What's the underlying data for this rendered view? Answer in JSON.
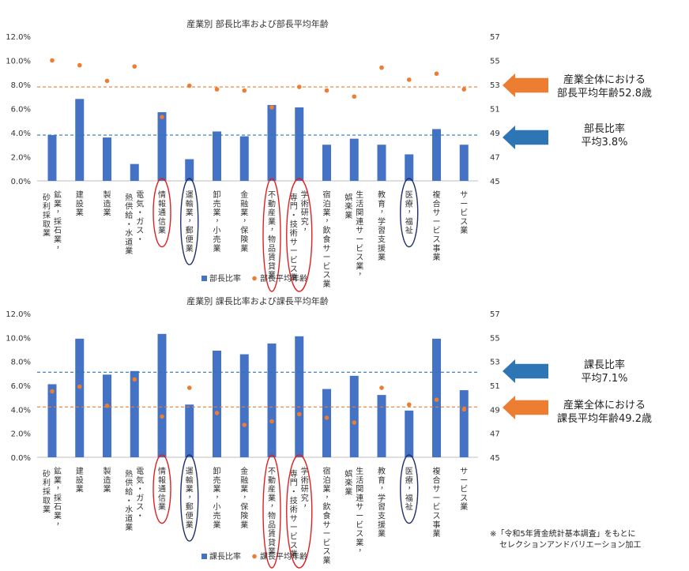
{
  "charts": [
    {
      "title": "産業別 部長比率および部長平均年齢",
      "bar_color": "#4472C4",
      "dot_color": "#ED7D31",
      "left_ticks": [
        "0.0%",
        "2.0%",
        "4.0%",
        "6.0%",
        "8.0%",
        "10.0%",
        "12.0%"
      ],
      "right_ticks": [
        "45",
        "47",
        "49",
        "51",
        "53",
        "55",
        "57"
      ],
      "legend": {
        "bar": "部長比率",
        "dot": "部長平均年齢"
      },
      "annotations": {
        "age_line1": "産業全体における",
        "age_line2": "部長平均年齢52.8歳",
        "ratio_line1": "部長比率",
        "ratio_line2": "平均3.8%"
      }
    },
    {
      "title": "産業別 課長比率および課長平均年齢",
      "bar_color": "#4472C4",
      "dot_color": "#ED7D31",
      "left_ticks": [
        "0.0%",
        "2.0%",
        "4.0%",
        "6.0%",
        "8.0%",
        "10.0%",
        "12.0%"
      ],
      "right_ticks": [
        "45",
        "47",
        "49",
        "51",
        "53",
        "55",
        "57"
      ],
      "legend": {
        "bar": "課長比率",
        "dot": "課長平均年齢"
      },
      "annotations": {
        "ratio_line1": "課長比率",
        "ratio_line2": "平均7.1%",
        "age_line1": "産業全体における",
        "age_line2": "課長平均年齢49.2歳"
      }
    }
  ],
  "footnote": {
    "line1": "※「令和5年賃金統計基本調査」をもとに",
    "line2": "セレクションアンドバリエーション加工"
  },
  "chart_data": [
    {
      "type": "bar",
      "title": "産業別 部長比率および部長平均年齢",
      "categories": [
        [
          "砂利採取業",
          "鉱業，採石業，"
        ],
        [
          "建設業"
        ],
        [
          "製造業"
        ],
        [
          "熱供給・水道業",
          "電気・ガス・"
        ],
        [
          "情報通信業"
        ],
        [
          "運輸業，郵便業"
        ],
        [
          "卸売業，小売業"
        ],
        [
          "金融業，保険業"
        ],
        [
          "不動産業，物品賃貸業"
        ],
        [
          "専門・技術サービス業",
          "学術研究，"
        ],
        [
          "宿泊業，飲食サービス業"
        ],
        [
          "娯楽業",
          "生活関連サービス業，"
        ],
        [
          "教育，学習支援業"
        ],
        [
          "医療，福祉"
        ],
        [
          "複合サービス事業"
        ],
        [
          "サービス業"
        ]
      ],
      "series": [
        {
          "name": "部長比率",
          "kind": "bar",
          "axis": "left",
          "unit": "%",
          "values": [
            3.8,
            6.8,
            3.6,
            1.4,
            5.7,
            1.8,
            4.1,
            3.7,
            6.3,
            6.1,
            3.0,
            3.5,
            3.0,
            2.2,
            4.3,
            3.0
          ]
        },
        {
          "name": "部長平均年齢",
          "kind": "scatter",
          "axis": "right",
          "values": [
            55.0,
            54.6,
            53.3,
            54.5,
            50.3,
            52.9,
            52.6,
            52.5,
            51.1,
            52.8,
            52.5,
            52.0,
            54.4,
            53.4,
            53.9,
            52.6
          ]
        }
      ],
      "ylim_left": [
        0,
        12
      ],
      "ylim_right": [
        45,
        57
      ],
      "reference_lines": [
        {
          "axis": "left",
          "value": 3.8,
          "color": "#2E75B6"
        },
        {
          "axis": "right",
          "value": 52.8,
          "color": "#ED7D31"
        }
      ],
      "highlight_red": [
        4,
        8,
        9
      ],
      "highlight_navy": [
        5,
        13
      ],
      "legend_position": "bottom",
      "grid": false
    },
    {
      "type": "bar",
      "title": "産業別 課長比率および課長平均年齢",
      "categories": [
        [
          "砂利採取業",
          "鉱業，採石業，"
        ],
        [
          "建設業"
        ],
        [
          "製造業"
        ],
        [
          "熱供給・水道業",
          "電気・ガス・"
        ],
        [
          "情報通信業"
        ],
        [
          "運輸業，郵便業"
        ],
        [
          "卸売業，小売業"
        ],
        [
          "金融業，保険業"
        ],
        [
          "不動産業，物品賃貸業"
        ],
        [
          "専門・技術サービス業",
          "学術研究，"
        ],
        [
          "宿泊業，飲食サービス業"
        ],
        [
          "娯楽業",
          "生活関連サービス業，"
        ],
        [
          "教育，学習支援業"
        ],
        [
          "医療，福祉"
        ],
        [
          "複合サービス事業"
        ],
        [
          "サービス業"
        ]
      ],
      "series": [
        {
          "name": "課長比率",
          "kind": "bar",
          "axis": "left",
          "unit": "%",
          "values": [
            6.1,
            9.9,
            6.9,
            7.2,
            10.3,
            4.4,
            8.9,
            8.6,
            9.5,
            10.1,
            5.7,
            6.8,
            5.2,
            3.9,
            9.9,
            5.6
          ]
        },
        {
          "name": "課長平均年齢",
          "kind": "scatter",
          "axis": "right",
          "values": [
            50.5,
            50.9,
            49.3,
            51.5,
            48.4,
            50.8,
            48.7,
            47.7,
            48.0,
            48.6,
            48.3,
            47.9,
            50.8,
            49.4,
            49.8,
            49.0
          ]
        }
      ],
      "ylim_left": [
        0,
        12
      ],
      "ylim_right": [
        45,
        57
      ],
      "reference_lines": [
        {
          "axis": "left",
          "value": 7.1,
          "color": "#2E75B6"
        },
        {
          "axis": "right",
          "value": 49.2,
          "color": "#ED7D31"
        }
      ],
      "highlight_red": [
        4,
        8,
        9
      ],
      "highlight_navy": [
        5,
        13
      ],
      "legend_position": "bottom",
      "grid": false
    }
  ]
}
